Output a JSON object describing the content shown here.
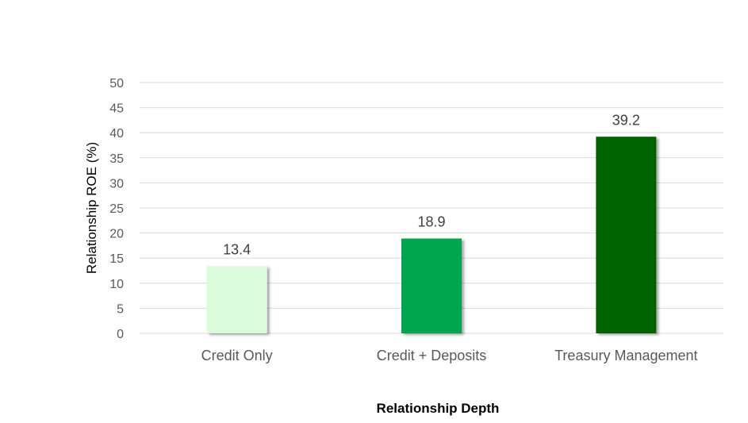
{
  "chart_data": {
    "type": "bar",
    "title": "",
    "xlabel": "Relationship Depth",
    "ylabel": "Relationship  ROE (%)",
    "categories": [
      "Credit Only",
      "Credit + Deposits",
      "Treasury Management"
    ],
    "values": [
      13.4,
      18.9,
      39.2
    ],
    "data_labels": [
      "13.4",
      "18.9",
      "39.2"
    ],
    "bar_colors": [
      "#dcfadc",
      "#00a650",
      "#006400"
    ],
    "ylim": [
      0,
      50
    ],
    "yticks": [
      0,
      5,
      10,
      15,
      20,
      25,
      30,
      35,
      40,
      45,
      50
    ],
    "ytick_labels": [
      "0",
      "5",
      "10",
      "15",
      "20",
      "25",
      "30",
      "35",
      "40",
      "45",
      "50"
    ],
    "grid": true,
    "legend": "none"
  }
}
